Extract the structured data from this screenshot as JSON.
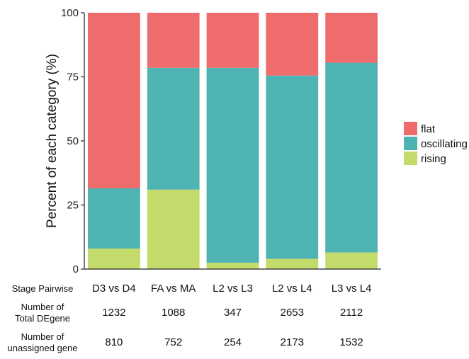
{
  "chart_data": {
    "type": "bar",
    "stacked": true,
    "ylabel": "Percent of each category (%)",
    "ylim": [
      0,
      100
    ],
    "yticks": [
      0,
      25,
      50,
      75,
      100
    ],
    "grid": false,
    "legend_position": "right",
    "categories": [
      "D3 vs D4",
      "FA vs MA",
      "L2 vs L3",
      "L2 vs L4",
      "L3 vs L4"
    ],
    "series": [
      {
        "name": "rising",
        "color": "#C2DB6B",
        "values": [
          8,
          31,
          2.5,
          4,
          6.5
        ]
      },
      {
        "name": "oscillating",
        "color": "#4DB3B3",
        "values": [
          23.5,
          47.5,
          76,
          71.5,
          74
        ]
      },
      {
        "name": "flat",
        "color": "#EE6C6C",
        "values": [
          68.5,
          21.5,
          21.5,
          24.5,
          19.5
        ]
      }
    ],
    "legend_order": [
      "flat",
      "oscillating",
      "rising"
    ]
  },
  "table": {
    "rows": [
      {
        "title_lines": [
          "Stage Pairwise"
        ],
        "values": [
          "D3 vs D4",
          "FA vs MA",
          "L2 vs L3",
          "L2 vs L4",
          "L3 vs L4"
        ]
      },
      {
        "title_lines": [
          "Number of",
          "Total DEgene"
        ],
        "values": [
          "1232",
          "1088",
          "347",
          "2653",
          "2112"
        ]
      },
      {
        "title_lines": [
          "Number of",
          "unassigned gene"
        ],
        "values": [
          "810",
          "752",
          "254",
          "2173",
          "1532"
        ]
      }
    ]
  }
}
